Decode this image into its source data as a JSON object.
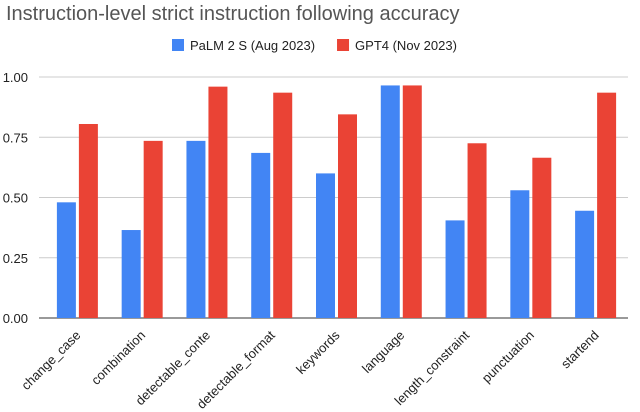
{
  "chart_data": {
    "type": "grouped_bar",
    "title": "Instruction-level strict instruction following accuracy",
    "categories": [
      "change_case",
      "combination",
      "detectable_conte",
      "detectable_format",
      "keywords",
      "language",
      "length_constraint",
      "punctuation",
      "startend"
    ],
    "series": [
      {
        "name": "PaLM 2 S (Aug 2023)",
        "color": "#4285f4",
        "values": [
          0.48,
          0.365,
          0.735,
          0.685,
          0.6,
          0.965,
          0.405,
          0.53,
          0.445
        ]
      },
      {
        "name": "GPT4 (Nov 2023)",
        "color": "#ea4335",
        "values": [
          0.805,
          0.735,
          0.96,
          0.935,
          0.845,
          0.965,
          0.725,
          0.665,
          0.935
        ]
      }
    ],
    "ylim": [
      0,
      1
    ],
    "yticks": [
      {
        "value": 0,
        "label": "0.00"
      },
      {
        "value": 0.25,
        "label": "0.25"
      },
      {
        "value": 0.5,
        "label": "0.50"
      },
      {
        "value": 0.75,
        "label": "0.75"
      },
      {
        "value": 1,
        "label": "1.00"
      }
    ],
    "grid": true,
    "legend": "top"
  }
}
